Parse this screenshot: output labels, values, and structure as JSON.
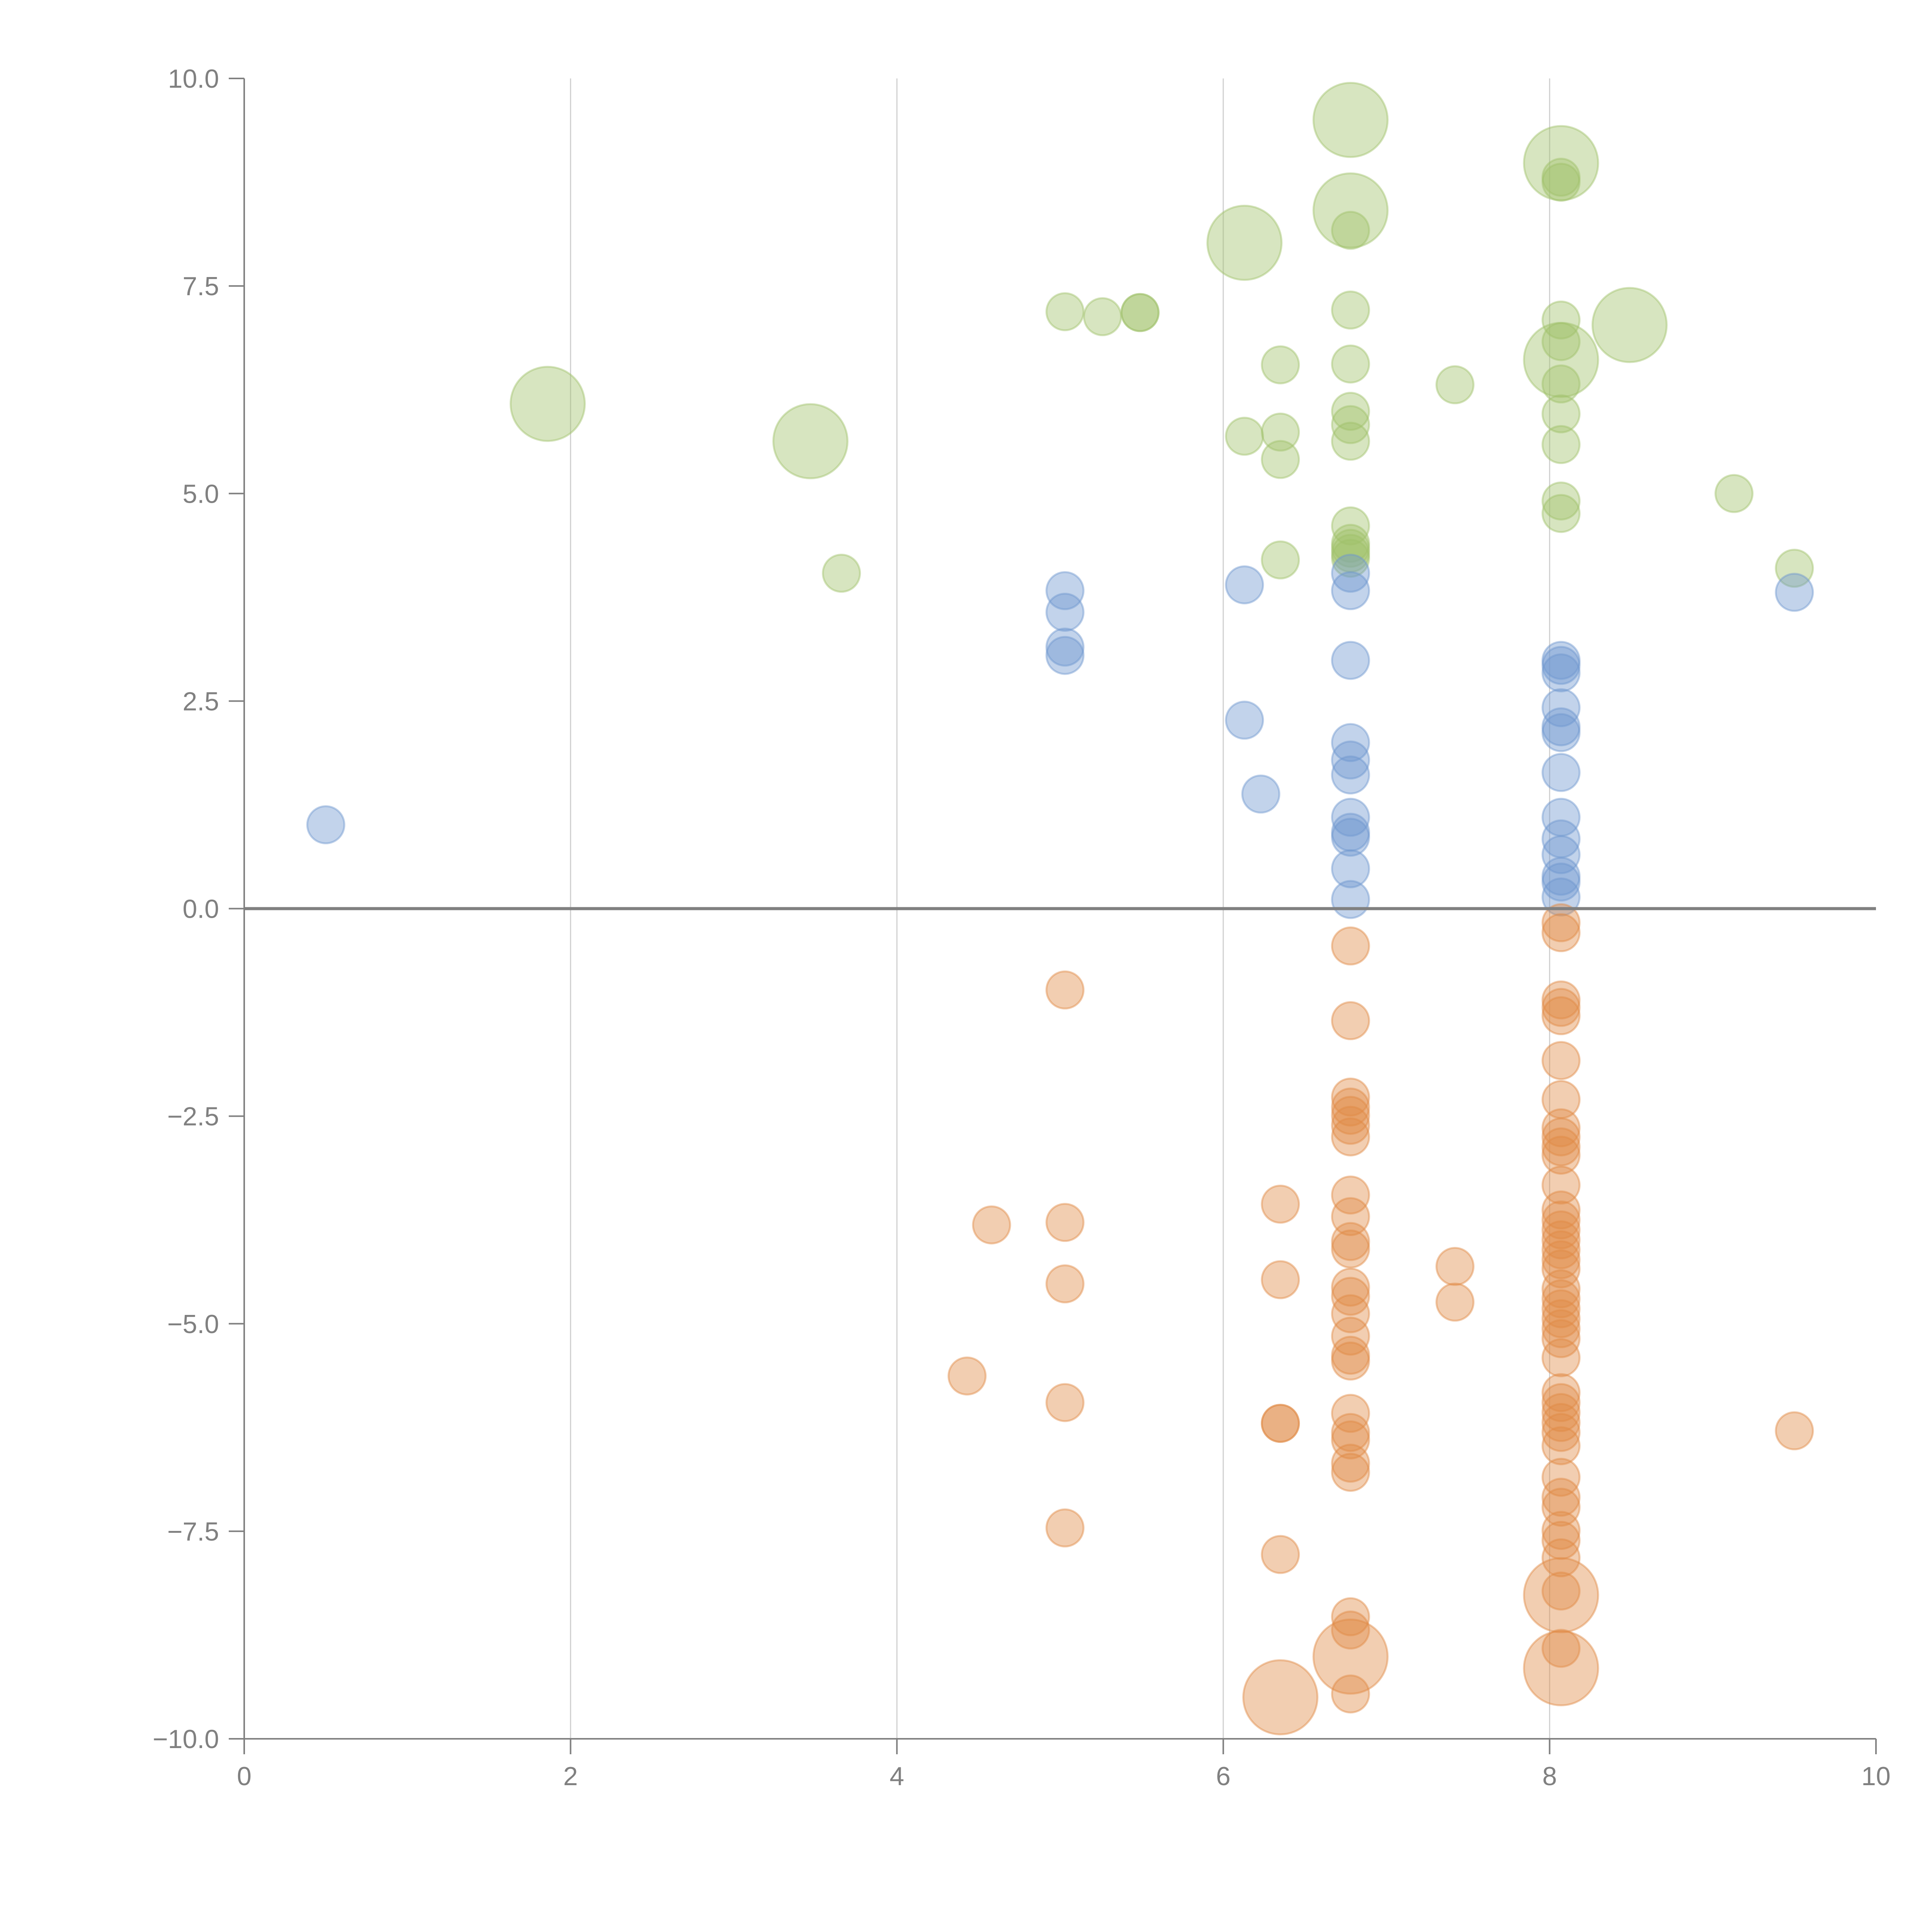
{
  "chart_data": {
    "type": "scatter",
    "title": "",
    "xlabel": "",
    "ylabel": "",
    "xlim": [
      0,
      10
    ],
    "ylim": [
      -10,
      10
    ],
    "x_ticks": [
      0,
      2,
      4,
      6,
      8,
      10
    ],
    "x_tick_labels": [
      "0",
      "2",
      "4",
      "6",
      "8",
      "10"
    ],
    "y_ticks": [
      10,
      7.5,
      5,
      2.5,
      0,
      -2.5,
      -5,
      -7.5,
      -10
    ],
    "y_tick_labels": [
      "10.0",
      "7.5",
      "5.0",
      "2.5",
      "0.0",
      "−2.5",
      "−5.0",
      "−7.5",
      "−10.0"
    ],
    "grid": "vertical at x ticks",
    "reference_line": {
      "y": 0
    },
    "legend": "none",
    "size_note": "marker size: 1 = small, 4 = large (relative area)",
    "series": [
      {
        "name": "green",
        "color": "#9fc26a",
        "points": [
          {
            "x": 1.86,
            "y": 6.08,
            "size": 4
          },
          {
            "x": 3.47,
            "y": 5.63,
            "size": 4
          },
          {
            "x": 3.66,
            "y": 4.04,
            "size": 1
          },
          {
            "x": 5.03,
            "y": 7.19,
            "size": 1
          },
          {
            "x": 5.26,
            "y": 7.13,
            "size": 1
          },
          {
            "x": 5.49,
            "y": 7.18,
            "size": 1
          },
          {
            "x": 5.49,
            "y": 7.18,
            "size": 1
          },
          {
            "x": 6.13,
            "y": 8.02,
            "size": 4
          },
          {
            "x": 6.13,
            "y": 5.69,
            "size": 1
          },
          {
            "x": 6.35,
            "y": 6.55,
            "size": 1
          },
          {
            "x": 6.35,
            "y": 5.74,
            "size": 1
          },
          {
            "x": 6.35,
            "y": 5.41,
            "size": 1
          },
          {
            "x": 6.35,
            "y": 4.2,
            "size": 1
          },
          {
            "x": 6.78,
            "y": 9.5,
            "size": 4
          },
          {
            "x": 6.78,
            "y": 8.41,
            "size": 4
          },
          {
            "x": 6.78,
            "y": 8.17,
            "size": 1
          },
          {
            "x": 6.78,
            "y": 7.21,
            "size": 1
          },
          {
            "x": 6.78,
            "y": 6.56,
            "size": 1
          },
          {
            "x": 6.78,
            "y": 5.99,
            "size": 1
          },
          {
            "x": 6.78,
            "y": 5.83,
            "size": 1
          },
          {
            "x": 6.78,
            "y": 5.63,
            "size": 1
          },
          {
            "x": 6.78,
            "y": 4.61,
            "size": 1
          },
          {
            "x": 6.78,
            "y": 4.4,
            "size": 1
          },
          {
            "x": 6.78,
            "y": 4.34,
            "size": 1
          },
          {
            "x": 6.78,
            "y": 4.28,
            "size": 1
          },
          {
            "x": 6.78,
            "y": 4.22,
            "size": 1
          },
          {
            "x": 7.42,
            "y": 6.31,
            "size": 1
          },
          {
            "x": 8.07,
            "y": 8.98,
            "size": 4
          },
          {
            "x": 8.07,
            "y": 8.81,
            "size": 1
          },
          {
            "x": 8.07,
            "y": 8.75,
            "size": 1
          },
          {
            "x": 8.07,
            "y": 7.09,
            "size": 1
          },
          {
            "x": 8.07,
            "y": 6.83,
            "size": 1
          },
          {
            "x": 8.07,
            "y": 6.61,
            "size": 4
          },
          {
            "x": 8.07,
            "y": 6.32,
            "size": 1
          },
          {
            "x": 8.07,
            "y": 5.96,
            "size": 1
          },
          {
            "x": 8.07,
            "y": 5.59,
            "size": 1
          },
          {
            "x": 8.07,
            "y": 4.91,
            "size": 1
          },
          {
            "x": 8.07,
            "y": 4.76,
            "size": 1
          },
          {
            "x": 8.49,
            "y": 7.03,
            "size": 4
          },
          {
            "x": 9.13,
            "y": 5.0,
            "size": 1
          },
          {
            "x": 9.5,
            "y": 4.1,
            "size": 1
          }
        ]
      },
      {
        "name": "blue",
        "color": "#6e97cf",
        "points": [
          {
            "x": 0.5,
            "y": 1.01,
            "size": 1
          },
          {
            "x": 5.03,
            "y": 3.83,
            "size": 1
          },
          {
            "x": 5.03,
            "y": 3.57,
            "size": 1
          },
          {
            "x": 5.03,
            "y": 3.15,
            "size": 1
          },
          {
            "x": 5.03,
            "y": 3.05,
            "size": 1
          },
          {
            "x": 6.13,
            "y": 3.9,
            "size": 1
          },
          {
            "x": 6.13,
            "y": 2.27,
            "size": 1
          },
          {
            "x": 6.23,
            "y": 1.38,
            "size": 1
          },
          {
            "x": 6.78,
            "y": 4.04,
            "size": 1
          },
          {
            "x": 6.78,
            "y": 3.83,
            "size": 1
          },
          {
            "x": 6.78,
            "y": 2.99,
            "size": 1
          },
          {
            "x": 6.78,
            "y": 2.0,
            "size": 1
          },
          {
            "x": 6.78,
            "y": 1.79,
            "size": 1
          },
          {
            "x": 6.78,
            "y": 1.61,
            "size": 1
          },
          {
            "x": 6.78,
            "y": 1.1,
            "size": 1
          },
          {
            "x": 6.78,
            "y": 0.92,
            "size": 1
          },
          {
            "x": 6.78,
            "y": 0.86,
            "size": 1
          },
          {
            "x": 6.78,
            "y": 0.48,
            "size": 1
          },
          {
            "x": 6.78,
            "y": 0.11,
            "size": 1
          },
          {
            "x": 8.07,
            "y": 2.99,
            "size": 1
          },
          {
            "x": 8.07,
            "y": 2.93,
            "size": 1
          },
          {
            "x": 8.07,
            "y": 2.84,
            "size": 1
          },
          {
            "x": 8.07,
            "y": 2.42,
            "size": 1
          },
          {
            "x": 8.07,
            "y": 2.19,
            "size": 1
          },
          {
            "x": 8.07,
            "y": 2.12,
            "size": 1
          },
          {
            "x": 8.07,
            "y": 1.64,
            "size": 1
          },
          {
            "x": 8.07,
            "y": 1.1,
            "size": 1
          },
          {
            "x": 8.07,
            "y": 0.84,
            "size": 1
          },
          {
            "x": 8.07,
            "y": 0.65,
            "size": 1
          },
          {
            "x": 8.07,
            "y": 0.39,
            "size": 1
          },
          {
            "x": 8.07,
            "y": 0.32,
            "size": 1
          },
          {
            "x": 8.07,
            "y": 0.14,
            "size": 1
          },
          {
            "x": 9.5,
            "y": 3.81,
            "size": 1
          }
        ]
      },
      {
        "name": "orange",
        "color": "#e08a44",
        "points": [
          {
            "x": 4.43,
            "y": -5.63,
            "size": 1
          },
          {
            "x": 4.58,
            "y": -3.81,
            "size": 1
          },
          {
            "x": 5.03,
            "y": -0.98,
            "size": 1
          },
          {
            "x": 5.03,
            "y": -3.78,
            "size": 1
          },
          {
            "x": 5.03,
            "y": -4.52,
            "size": 1
          },
          {
            "x": 5.03,
            "y": -5.95,
            "size": 1
          },
          {
            "x": 5.03,
            "y": -7.46,
            "size": 1
          },
          {
            "x": 6.35,
            "y": -3.56,
            "size": 1
          },
          {
            "x": 6.35,
            "y": -4.47,
            "size": 1
          },
          {
            "x": 6.35,
            "y": -6.2,
            "size": 1
          },
          {
            "x": 6.35,
            "y": -6.2,
            "size": 1
          },
          {
            "x": 6.35,
            "y": -7.78,
            "size": 1
          },
          {
            "x": 6.35,
            "y": -9.5,
            "size": 4
          },
          {
            "x": 6.78,
            "y": -0.45,
            "size": 1
          },
          {
            "x": 6.78,
            "y": -1.35,
            "size": 1
          },
          {
            "x": 6.78,
            "y": -2.27,
            "size": 1
          },
          {
            "x": 6.78,
            "y": -2.39,
            "size": 1
          },
          {
            "x": 6.78,
            "y": -2.49,
            "size": 1
          },
          {
            "x": 6.78,
            "y": -2.61,
            "size": 1
          },
          {
            "x": 6.78,
            "y": -2.75,
            "size": 1
          },
          {
            "x": 6.78,
            "y": -3.45,
            "size": 1
          },
          {
            "x": 6.78,
            "y": -3.71,
            "size": 1
          },
          {
            "x": 6.78,
            "y": -4.01,
            "size": 1
          },
          {
            "x": 6.78,
            "y": -4.1,
            "size": 1
          },
          {
            "x": 6.78,
            "y": -4.56,
            "size": 1
          },
          {
            "x": 6.78,
            "y": -4.67,
            "size": 1
          },
          {
            "x": 6.78,
            "y": -4.88,
            "size": 1
          },
          {
            "x": 6.78,
            "y": -5.15,
            "size": 1
          },
          {
            "x": 6.78,
            "y": -5.38,
            "size": 1
          },
          {
            "x": 6.78,
            "y": -5.45,
            "size": 1
          },
          {
            "x": 6.78,
            "y": -6.08,
            "size": 1
          },
          {
            "x": 6.78,
            "y": -6.31,
            "size": 1
          },
          {
            "x": 6.78,
            "y": -6.4,
            "size": 1
          },
          {
            "x": 6.78,
            "y": -6.68,
            "size": 1
          },
          {
            "x": 6.78,
            "y": -6.79,
            "size": 1
          },
          {
            "x": 6.78,
            "y": -8.53,
            "size": 1
          },
          {
            "x": 6.78,
            "y": -8.69,
            "size": 1
          },
          {
            "x": 6.78,
            "y": -9.01,
            "size": 4
          },
          {
            "x": 6.78,
            "y": -9.46,
            "size": 1
          },
          {
            "x": 7.42,
            "y": -4.31,
            "size": 1
          },
          {
            "x": 7.42,
            "y": -4.74,
            "size": 1
          },
          {
            "x": 8.07,
            "y": -0.17,
            "size": 1
          },
          {
            "x": 8.07,
            "y": -0.29,
            "size": 1
          },
          {
            "x": 8.07,
            "y": -1.1,
            "size": 1
          },
          {
            "x": 8.07,
            "y": -1.19,
            "size": 1
          },
          {
            "x": 8.07,
            "y": -1.29,
            "size": 1
          },
          {
            "x": 8.07,
            "y": -1.83,
            "size": 1
          },
          {
            "x": 8.07,
            "y": -2.3,
            "size": 1
          },
          {
            "x": 8.07,
            "y": -2.64,
            "size": 1
          },
          {
            "x": 8.07,
            "y": -2.75,
            "size": 1
          },
          {
            "x": 8.07,
            "y": -2.87,
            "size": 1
          },
          {
            "x": 8.07,
            "y": -2.97,
            "size": 1
          },
          {
            "x": 8.07,
            "y": -3.33,
            "size": 1
          },
          {
            "x": 8.07,
            "y": -3.63,
            "size": 1
          },
          {
            "x": 8.07,
            "y": -3.75,
            "size": 1
          },
          {
            "x": 8.07,
            "y": -3.87,
            "size": 1
          },
          {
            "x": 8.07,
            "y": -3.99,
            "size": 1
          },
          {
            "x": 8.07,
            "y": -4.11,
            "size": 1
          },
          {
            "x": 8.07,
            "y": -4.23,
            "size": 1
          },
          {
            "x": 8.07,
            "y": -4.34,
            "size": 1
          },
          {
            "x": 8.07,
            "y": -4.58,
            "size": 1
          },
          {
            "x": 8.07,
            "y": -4.7,
            "size": 1
          },
          {
            "x": 8.07,
            "y": -4.82,
            "size": 1
          },
          {
            "x": 8.07,
            "y": -4.94,
            "size": 1
          },
          {
            "x": 8.07,
            "y": -5.06,
            "size": 1
          },
          {
            "x": 8.07,
            "y": -5.18,
            "size": 1
          },
          {
            "x": 8.07,
            "y": -5.41,
            "size": 1
          },
          {
            "x": 8.07,
            "y": -5.83,
            "size": 1
          },
          {
            "x": 8.07,
            "y": -5.95,
            "size": 1
          },
          {
            "x": 8.07,
            "y": -6.07,
            "size": 1
          },
          {
            "x": 8.07,
            "y": -6.19,
            "size": 1
          },
          {
            "x": 8.07,
            "y": -6.31,
            "size": 1
          },
          {
            "x": 8.07,
            "y": -6.47,
            "size": 1
          },
          {
            "x": 8.07,
            "y": -6.85,
            "size": 1
          },
          {
            "x": 8.07,
            "y": -7.09,
            "size": 1
          },
          {
            "x": 8.07,
            "y": -7.21,
            "size": 1
          },
          {
            "x": 8.07,
            "y": -7.49,
            "size": 1
          },
          {
            "x": 8.07,
            "y": -7.61,
            "size": 1
          },
          {
            "x": 8.07,
            "y": -7.82,
            "size": 1
          },
          {
            "x": 8.07,
            "y": -8.22,
            "size": 1
          },
          {
            "x": 8.07,
            "y": -8.27,
            "size": 4
          },
          {
            "x": 8.07,
            "y": -8.91,
            "size": 1
          },
          {
            "x": 8.07,
            "y": -9.15,
            "size": 4
          },
          {
            "x": 9.5,
            "y": -6.29,
            "size": 1
          }
        ]
      }
    ]
  }
}
